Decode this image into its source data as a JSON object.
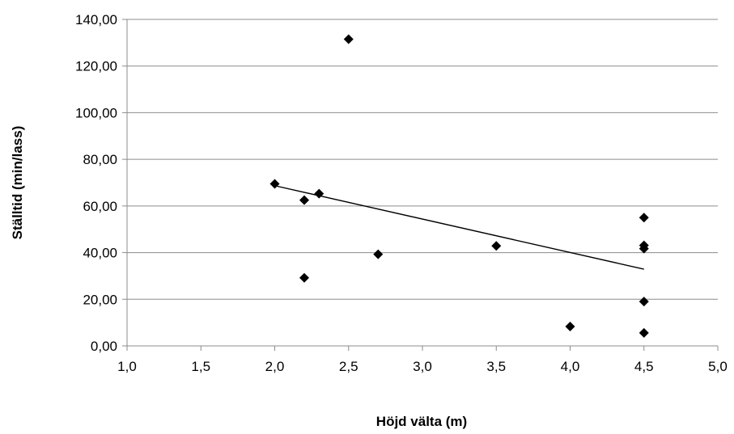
{
  "chart_data": {
    "type": "scatter",
    "xlabel": "Höjd välta (m)",
    "ylabel": "Ställtid (min/lass)",
    "xlim": [
      1.0,
      5.0
    ],
    "ylim": [
      0,
      140
    ],
    "x_ticks": [
      1.0,
      1.5,
      2.0,
      2.5,
      3.0,
      3.5,
      4.0,
      4.5,
      5.0
    ],
    "x_tick_labels": [
      "1,0",
      "1,5",
      "2,0",
      "2,5",
      "3,0",
      "3,5",
      "4,0",
      "4,5",
      "5,0"
    ],
    "y_ticks": [
      0,
      20,
      40,
      60,
      80,
      100,
      120,
      140
    ],
    "y_tick_labels": [
      "0,00",
      "20,00",
      "40,00",
      "60,00",
      "80,00",
      "100,00",
      "120,00",
      "140,00"
    ],
    "grid": "horizontal",
    "marker": "diamond",
    "marker_color": "#000000",
    "points": [
      {
        "x": 2.0,
        "y": 69.5
      },
      {
        "x": 2.2,
        "y": 62.5
      },
      {
        "x": 2.2,
        "y": 29.2
      },
      {
        "x": 2.3,
        "y": 65.3
      },
      {
        "x": 2.5,
        "y": 131.5
      },
      {
        "x": 2.7,
        "y": 39.3
      },
      {
        "x": 3.5,
        "y": 42.9
      },
      {
        "x": 4.0,
        "y": 8.3
      },
      {
        "x": 4.5,
        "y": 55.0
      },
      {
        "x": 4.5,
        "y": 43.1
      },
      {
        "x": 4.5,
        "y": 41.7
      },
      {
        "x": 4.5,
        "y": 19.0
      },
      {
        "x": 4.5,
        "y": 5.6
      }
    ],
    "trendline": {
      "type": "linear",
      "x": [
        2.0,
        4.5
      ],
      "y": [
        68.7,
        32.9
      ]
    }
  }
}
